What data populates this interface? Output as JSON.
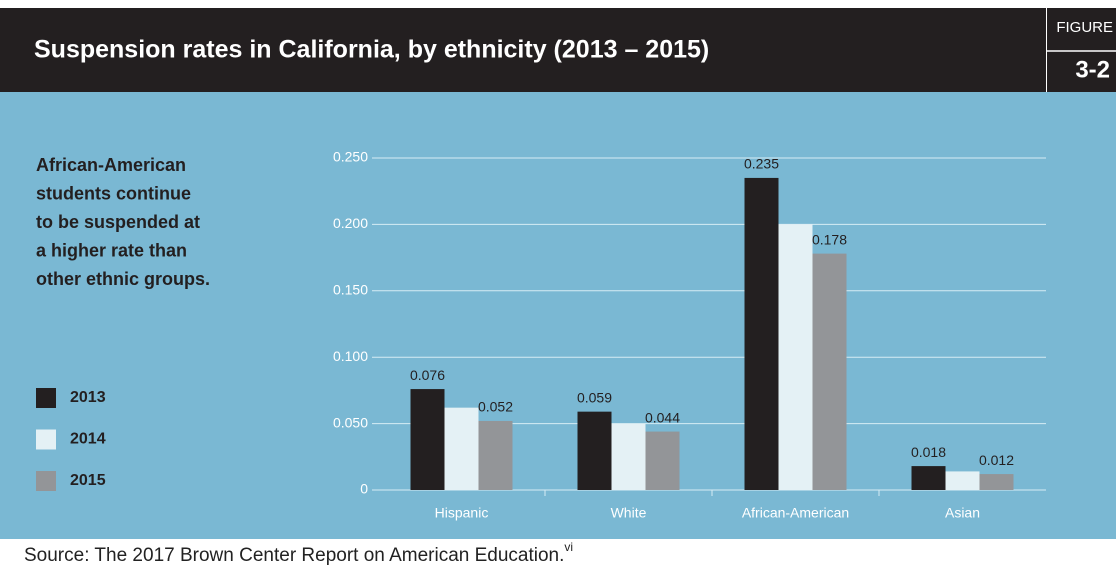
{
  "chart_data": {
    "type": "bar",
    "title": "Suspension rates in California, by ethnicity (2013 – 2015)",
    "figure_label": "FIGURE",
    "figure_number": "3-2",
    "annotation": [
      "African-American",
      "students continue",
      "to be suspended at",
      "a higher rate than",
      "other ethnic groups."
    ],
    "source": "Source: The 2017 Brown Center Report on American Education.",
    "source_note": "vi",
    "categories": [
      "Hispanic",
      "White",
      "African-American",
      "Asian"
    ],
    "series": [
      {
        "name": "2013",
        "color": "#231f20",
        "show_labels": true,
        "values": [
          0.076,
          0.059,
          0.235,
          0.018
        ]
      },
      {
        "name": "2014",
        "color": "#e4f1f5",
        "show_labels": false,
        "values": [
          0.062,
          0.05,
          0.2,
          0.014
        ]
      },
      {
        "name": "2015",
        "color": "#939598",
        "show_labels": true,
        "values": [
          0.052,
          0.044,
          0.178,
          0.012
        ]
      }
    ],
    "ylim": [
      0,
      0.25
    ],
    "yticks": [
      0,
      {
        "value": 0.05,
        "label": "0.050"
      },
      {
        "value": 0.1,
        "label": "0.100"
      },
      {
        "value": 0.15,
        "label": "0.150"
      },
      {
        "value": 0.2,
        "label": "0.200"
      },
      {
        "value": 0.25,
        "label": "0.250"
      }
    ],
    "grid": true,
    "legend": "left"
  }
}
